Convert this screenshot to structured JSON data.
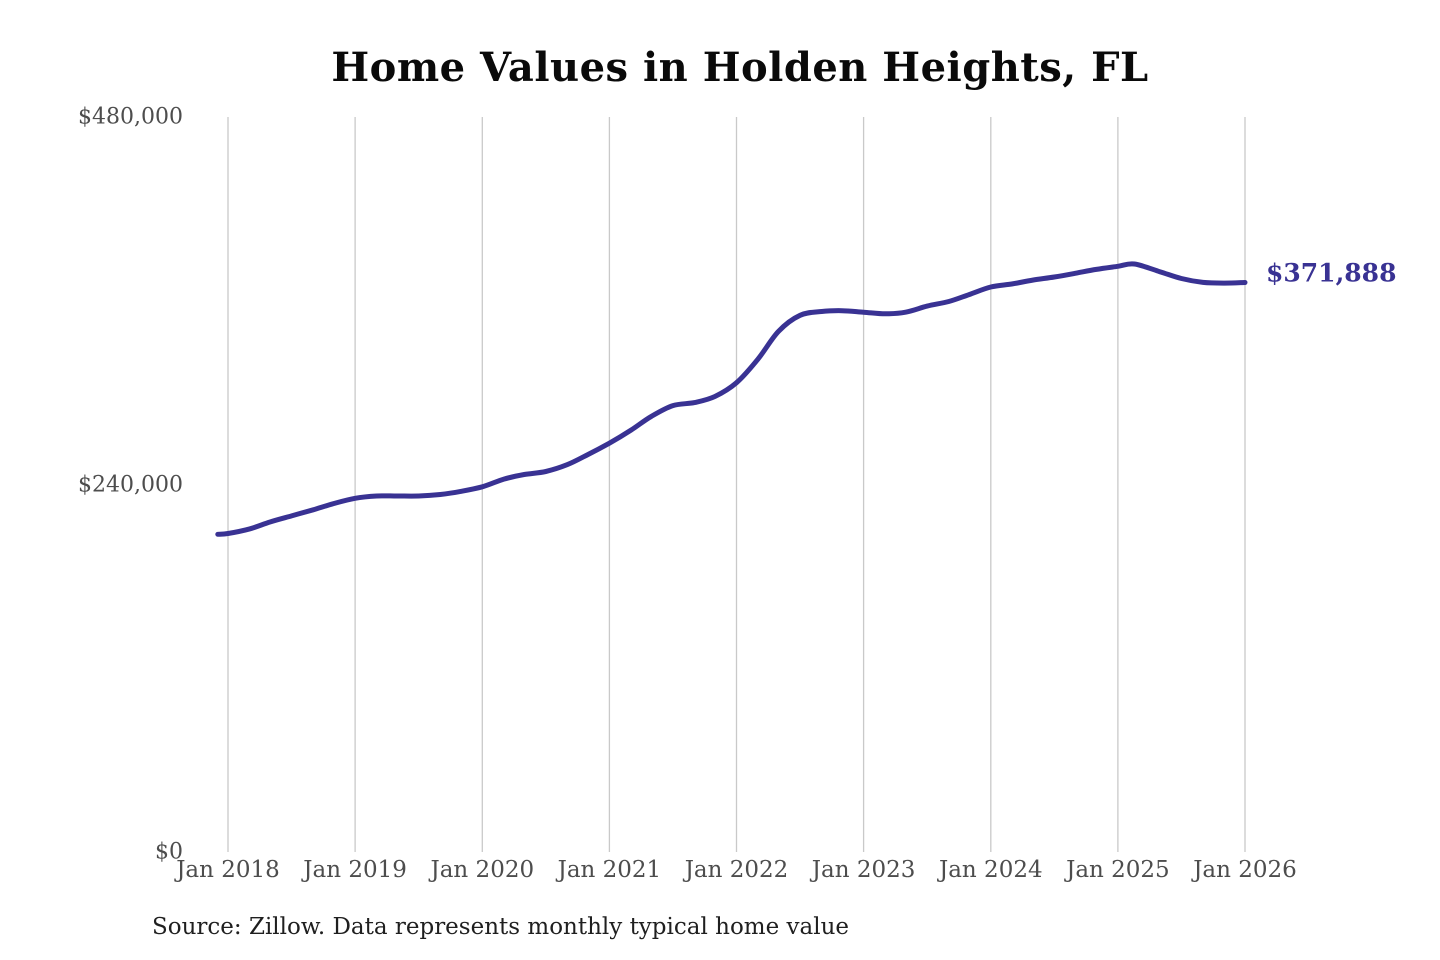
{
  "title": "Home Values in Holden Heights, FL",
  "source_note": "Source: Zillow. Data represents monthly typical home value",
  "annotation": {
    "label": "$371,888"
  },
  "colors": {
    "line": "#393293",
    "grid": "#c9c9c9",
    "axis_text": "#4d4d4d",
    "title_text": "#0a0a0a",
    "source_text": "#1f1f1f",
    "background": "#ffffff"
  },
  "chart_data": {
    "type": "line",
    "title": "Home Values in Holden Heights, FL",
    "xlabel": "",
    "ylabel": "",
    "ylim": [
      0,
      480000
    ],
    "xlim": [
      2017.92,
      2026.0
    ],
    "grid": "vertical-only",
    "legend": "none",
    "y_ticks": [
      {
        "label": "$0",
        "value": 0
      },
      {
        "label": "$240,000",
        "value": 240000
      },
      {
        "label": "$480,000",
        "value": 480000
      }
    ],
    "x_ticks": [
      {
        "label": "Jan 2018",
        "year": 2018
      },
      {
        "label": "Jan 2019",
        "year": 2019
      },
      {
        "label": "Jan 2020",
        "year": 2020
      },
      {
        "label": "Jan 2021",
        "year": 2021
      },
      {
        "label": "Jan 2022",
        "year": 2022
      },
      {
        "label": "Jan 2023",
        "year": 2023
      },
      {
        "label": "Jan 2024",
        "year": 2024
      },
      {
        "label": "Jan 2025",
        "year": 2025
      },
      {
        "label": "Jan 2026",
        "year": 2026
      }
    ],
    "series": [
      {
        "name": "Monthly typical home value",
        "color": "#393293",
        "last_value": 371888,
        "last_value_label": "$371,888",
        "points": [
          [
            2017.92,
            207500
          ],
          [
            2018.0,
            208000
          ],
          [
            2018.17,
            211000
          ],
          [
            2018.33,
            215500
          ],
          [
            2018.5,
            219500
          ],
          [
            2018.67,
            223500
          ],
          [
            2018.83,
            227500
          ],
          [
            2019.0,
            231000
          ],
          [
            2019.17,
            232500
          ],
          [
            2019.33,
            232500
          ],
          [
            2019.5,
            232500
          ],
          [
            2019.67,
            233500
          ],
          [
            2019.83,
            235500
          ],
          [
            2020.0,
            238500
          ],
          [
            2020.17,
            243500
          ],
          [
            2020.33,
            246500
          ],
          [
            2020.5,
            248500
          ],
          [
            2020.67,
            253000
          ],
          [
            2020.83,
            259500
          ],
          [
            2021.0,
            267000
          ],
          [
            2021.17,
            275500
          ],
          [
            2021.33,
            284500
          ],
          [
            2021.5,
            291500
          ],
          [
            2021.67,
            293500
          ],
          [
            2021.83,
            297500
          ],
          [
            2022.0,
            306500
          ],
          [
            2022.17,
            322000
          ],
          [
            2022.33,
            340000
          ],
          [
            2022.5,
            350500
          ],
          [
            2022.67,
            353000
          ],
          [
            2022.83,
            353500
          ],
          [
            2023.0,
            352500
          ],
          [
            2023.17,
            351500
          ],
          [
            2023.33,
            352500
          ],
          [
            2023.5,
            356500
          ],
          [
            2023.67,
            359500
          ],
          [
            2023.83,
            364000
          ],
          [
            2024.0,
            369000
          ],
          [
            2024.17,
            371000
          ],
          [
            2024.33,
            373500
          ],
          [
            2024.5,
            375500
          ],
          [
            2024.67,
            378000
          ],
          [
            2024.83,
            380500
          ],
          [
            2025.0,
            382500
          ],
          [
            2025.13,
            384000
          ],
          [
            2025.33,
            379000
          ],
          [
            2025.5,
            374500
          ],
          [
            2025.67,
            372000
          ],
          [
            2025.83,
            371500
          ],
          [
            2026.0,
            371888
          ]
        ]
      }
    ]
  }
}
